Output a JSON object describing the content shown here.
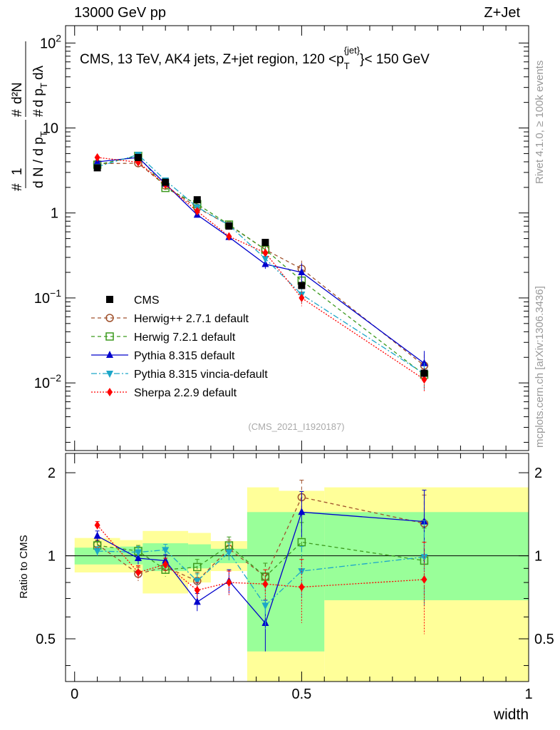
{
  "header": {
    "left": "13000 GeV pp",
    "right": "Z+Jet"
  },
  "side_text": {
    "rivet": "Rivet 4.1.0, ≥ 100k events",
    "mcplots": "mcplots.cern.ch [arXiv:1306.3436]"
  },
  "watermark": "(CMS_2021_I1920187)",
  "chart_data": {
    "type": "line",
    "title_parts": {
      "pre": "CMS, 13 TeV, AK4 jets, Z+jet region, 120 <p",
      "sub": "T",
      "sup": "{jet}",
      "post": "}< 150 GeV"
    },
    "ylabel_parts": {
      "frac_top": "1",
      "frac_bottom": "d N / d p",
      "frac_bottom_sub": "T",
      "hash": "#",
      "d2n": "d²N",
      "d_pt_dl": "d p",
      "d_pt_dl_sub": "T",
      "d_lambda": "dλ"
    },
    "xlabel": "width",
    "ratio_ylabel": "Ratio to CMS",
    "main_ylim": [
      0.0016,
      160
    ],
    "ratio_ylim": [
      0.35,
      2.35
    ],
    "xlim": [
      -0.02,
      1.0
    ],
    "x_ticks": [
      {
        "v": 0,
        "label": "0"
      },
      {
        "v": 0.5,
        "label": "0.5"
      },
      {
        "v": 1,
        "label": "1"
      }
    ],
    "y_ticks": [
      {
        "v": 0.01,
        "base": "10",
        "exp": "−2"
      },
      {
        "v": 0.1,
        "base": "10",
        "exp": "−1"
      },
      {
        "v": 1,
        "base": "1",
        "exp": ""
      },
      {
        "v": 10,
        "base": "10",
        "exp": ""
      },
      {
        "v": 100,
        "base": "10",
        "exp": "2"
      }
    ],
    "ratio_ticks": [
      {
        "v": 0.5,
        "label": "0.5"
      },
      {
        "v": 1,
        "label": "1"
      },
      {
        "v": 2,
        "label": "2"
      }
    ],
    "bin_edges": [
      0,
      0.1,
      0.15,
      0.25,
      0.3,
      0.38,
      0.45,
      0.55,
      1.0
    ],
    "bands": {
      "yellow": [
        [
          0.87,
          1.16
        ],
        [
          0.87,
          1.14
        ],
        [
          0.73,
          1.23
        ],
        [
          0.8,
          1.21
        ],
        [
          0.88,
          1.13
        ],
        [
          0.35,
          1.77
        ],
        [
          0.35,
          1.72
        ],
        [
          0.35,
          1.77
        ]
      ],
      "green": [
        [
          0.93,
          1.07
        ],
        [
          0.93,
          1.08
        ],
        [
          0.88,
          1.11
        ],
        [
          0.9,
          1.1
        ],
        [
          0.94,
          1.06
        ],
        [
          0.45,
          1.44
        ],
        [
          0.45,
          1.44
        ],
        [
          0.69,
          1.44
        ]
      ]
    },
    "data": {
      "name": "CMS",
      "x": [
        0.05,
        0.14,
        0.2,
        0.27,
        0.34,
        0.42,
        0.5,
        0.77
      ],
      "y": [
        3.4,
        4.5,
        2.3,
        1.43,
        0.7,
        0.45,
        0.14,
        0.013
      ]
    },
    "series": [
      {
        "name": "Herwig++ 2.7.1 default",
        "color": "#a0522d",
        "dash": "5,4",
        "marker": "circle-open",
        "y": [
          3.8,
          3.85,
          2.1,
          1.15,
          0.72,
          0.37,
          0.22,
          0.016
        ],
        "ratio": [
          1.1,
          0.86,
          0.91,
          0.81,
          1.06,
          0.84,
          1.63,
          1.31
        ],
        "ratio_err": [
          0.04,
          0.05,
          0.05,
          0.06,
          0.08,
          0.1,
          0.25,
          0.35
        ]
      },
      {
        "name": "Herwig 7.2.1 default",
        "color": "#3c9a1e",
        "dash": "5,4",
        "marker": "square-open",
        "y": [
          3.7,
          4.7,
          1.97,
          1.27,
          0.73,
          0.37,
          0.16,
          0.0125
        ],
        "ratio": [
          1.09,
          1.04,
          0.89,
          0.91,
          1.09,
          0.84,
          1.12,
          0.96
        ],
        "ratio_err": [
          0.04,
          0.05,
          0.05,
          0.06,
          0.08,
          0.1,
          0.2,
          0.3
        ]
      },
      {
        "name": "Pythia 8.315 default",
        "color": "#0000cc",
        "dash": "",
        "marker": "triangle-up",
        "y": [
          4.0,
          4.5,
          2.2,
          0.95,
          0.52,
          0.25,
          0.2,
          0.017
        ],
        "ratio": [
          1.18,
          0.98,
          0.96,
          0.68,
          0.81,
          0.57,
          1.44,
          1.33
        ],
        "ratio_err": [
          0.05,
          0.05,
          0.05,
          0.05,
          0.08,
          0.12,
          0.27,
          0.4
        ]
      },
      {
        "name": "Pythia 8.315 vincia-default",
        "color": "#1ca6c8",
        "dash": "8,3,2,3",
        "marker": "triangle-down",
        "y": [
          3.5,
          4.85,
          2.42,
          1.17,
          0.72,
          0.29,
          0.11,
          0.0128
        ],
        "ratio": [
          1.04,
          1.03,
          1.05,
          0.81,
          1.03,
          0.66,
          0.88,
          0.99
        ],
        "ratio_err": [
          0.04,
          0.05,
          0.05,
          0.05,
          0.08,
          0.12,
          0.2,
          0.35
        ]
      },
      {
        "name": "Sherpa 2.2.9 default",
        "color": "#ff0000",
        "dash": "2,2",
        "marker": "diamond",
        "y": [
          4.5,
          3.95,
          2.15,
          1.05,
          0.53,
          0.34,
          0.1,
          0.011
        ],
        "ratio": [
          1.29,
          0.87,
          0.93,
          0.75,
          0.8,
          0.79,
          0.77,
          0.82
        ],
        "ratio_err": [
          0.04,
          0.05,
          0.05,
          0.05,
          0.08,
          0.1,
          0.2,
          0.3
        ]
      }
    ]
  }
}
